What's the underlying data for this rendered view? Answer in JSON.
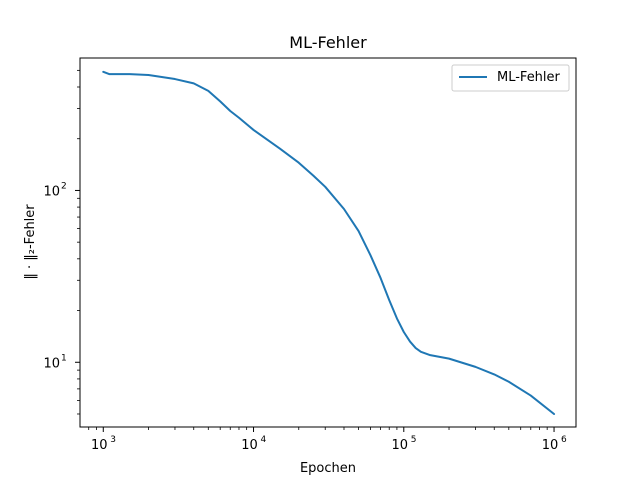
{
  "chart_data": {
    "type": "line",
    "title": "ML-Fehler",
    "xlabel": "Epochen",
    "ylabel": "‖ · ‖₂-Fehler",
    "xscale": "log",
    "yscale": "log",
    "xlim": [
      700,
      1400000
    ],
    "ylim": [
      4.2,
      590
    ],
    "grid": false,
    "legend_position": "top-right",
    "x_ticks": [
      {
        "value": 1000,
        "base": "10",
        "exp": "3"
      },
      {
        "value": 10000,
        "base": "10",
        "exp": "4"
      },
      {
        "value": 100000,
        "base": "10",
        "exp": "5"
      },
      {
        "value": 1000000,
        "base": "10",
        "exp": "6"
      }
    ],
    "y_ticks": [
      {
        "value": 10,
        "base": "10",
        "exp": "1"
      },
      {
        "value": 100,
        "base": "10",
        "exp": "2"
      }
    ],
    "series": [
      {
        "name": "ML-Fehler",
        "color": "#1f77b4",
        "x": [
          1000,
          1100,
          1500,
          2000,
          3000,
          4000,
          5000,
          6000,
          7000,
          8000,
          10000,
          15000,
          20000,
          25000,
          30000,
          40000,
          50000,
          60000,
          70000,
          80000,
          90000,
          100000,
          110000,
          120000,
          130000,
          150000,
          200000,
          300000,
          400000,
          500000,
          700000,
          1000000
        ],
        "y": [
          490,
          475,
          475,
          470,
          445,
          420,
          380,
          330,
          290,
          265,
          225,
          175,
          145,
          122,
          105,
          78,
          58,
          42,
          31,
          23,
          18,
          15,
          13.2,
          12.1,
          11.5,
          11,
          10.5,
          9.4,
          8.5,
          7.7,
          6.4,
          5
        ]
      }
    ]
  }
}
